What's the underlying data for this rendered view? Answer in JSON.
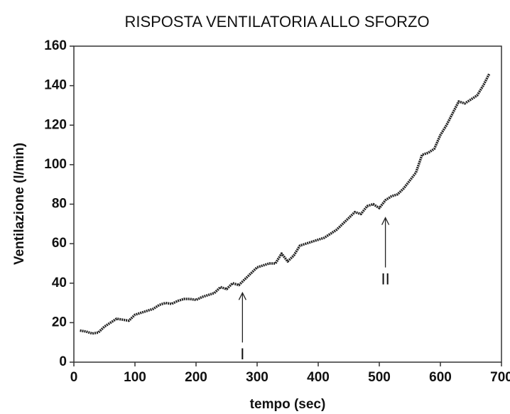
{
  "chart_data": {
    "type": "line",
    "title": "RISPOSTA VENTILATORIA ALLO SFORZO",
    "x_label": "tempo (sec)",
    "y_label": "Ventilazione (l/min)",
    "xlim": [
      0,
      700
    ],
    "xticks": [
      0,
      100,
      200,
      300,
      400,
      500,
      600,
      700
    ],
    "ylim": [
      0,
      160
    ],
    "yticks": [
      0,
      20,
      40,
      60,
      80,
      100,
      120,
      140,
      160
    ],
    "grid": false,
    "series": [
      {
        "name": "Ventilazione",
        "color": "#222222",
        "x": [
          10,
          20,
          30,
          40,
          50,
          60,
          70,
          80,
          90,
          100,
          110,
          120,
          130,
          140,
          150,
          160,
          170,
          180,
          190,
          200,
          210,
          220,
          230,
          240,
          250,
          260,
          270,
          280,
          290,
          300,
          310,
          320,
          330,
          340,
          350,
          360,
          370,
          380,
          390,
          400,
          410,
          420,
          430,
          440,
          450,
          460,
          470,
          480,
          490,
          500,
          510,
          520,
          530,
          540,
          550,
          560,
          570,
          580,
          590,
          600,
          610,
          620,
          630,
          640,
          650,
          660,
          670,
          680
        ],
        "values": [
          16,
          15.5,
          14.5,
          15,
          18,
          20,
          22,
          21.5,
          21,
          24,
          25,
          26,
          27,
          29,
          30,
          29.5,
          31,
          32,
          32,
          31.5,
          33,
          34,
          35,
          38,
          37,
          40,
          39,
          42,
          45,
          48,
          49,
          50,
          50,
          55,
          51,
          54,
          59,
          60,
          61,
          62,
          63,
          65,
          67,
          70,
          73,
          76,
          75,
          79,
          80,
          78,
          82,
          84,
          85,
          88,
          92,
          96,
          105,
          106,
          108,
          115,
          120,
          126,
          132,
          131,
          133,
          135,
          140,
          146
        ]
      }
    ],
    "annotations": [
      {
        "text": "I",
        "x": 276,
        "y": 38
      },
      {
        "text": "II",
        "x": 510,
        "y": 76
      }
    ]
  }
}
